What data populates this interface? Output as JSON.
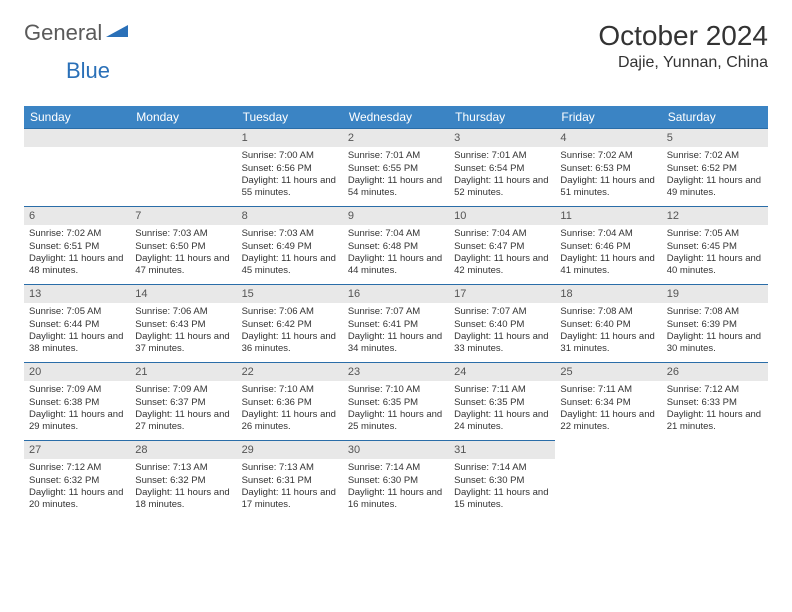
{
  "logo": {
    "text1": "General",
    "text2": "Blue"
  },
  "title": "October 2024",
  "location": "Dajie, Yunnan, China",
  "colors": {
    "header_bg": "#3b84c4",
    "header_text": "#ffffff",
    "daynum_bg": "#e8e8e8",
    "row_divider": "#2a6da8",
    "logo_gray": "#5a5a5a",
    "logo_blue": "#2a70b8"
  },
  "weekdays": [
    "Sunday",
    "Monday",
    "Tuesday",
    "Wednesday",
    "Thursday",
    "Friday",
    "Saturday"
  ],
  "firstDayOffset": 2,
  "days": [
    {
      "n": "1",
      "sunrise": "Sunrise: 7:00 AM",
      "sunset": "Sunset: 6:56 PM",
      "daylight": "Daylight: 11 hours and 55 minutes."
    },
    {
      "n": "2",
      "sunrise": "Sunrise: 7:01 AM",
      "sunset": "Sunset: 6:55 PM",
      "daylight": "Daylight: 11 hours and 54 minutes."
    },
    {
      "n": "3",
      "sunrise": "Sunrise: 7:01 AM",
      "sunset": "Sunset: 6:54 PM",
      "daylight": "Daylight: 11 hours and 52 minutes."
    },
    {
      "n": "4",
      "sunrise": "Sunrise: 7:02 AM",
      "sunset": "Sunset: 6:53 PM",
      "daylight": "Daylight: 11 hours and 51 minutes."
    },
    {
      "n": "5",
      "sunrise": "Sunrise: 7:02 AM",
      "sunset": "Sunset: 6:52 PM",
      "daylight": "Daylight: 11 hours and 49 minutes."
    },
    {
      "n": "6",
      "sunrise": "Sunrise: 7:02 AM",
      "sunset": "Sunset: 6:51 PM",
      "daylight": "Daylight: 11 hours and 48 minutes."
    },
    {
      "n": "7",
      "sunrise": "Sunrise: 7:03 AM",
      "sunset": "Sunset: 6:50 PM",
      "daylight": "Daylight: 11 hours and 47 minutes."
    },
    {
      "n": "8",
      "sunrise": "Sunrise: 7:03 AM",
      "sunset": "Sunset: 6:49 PM",
      "daylight": "Daylight: 11 hours and 45 minutes."
    },
    {
      "n": "9",
      "sunrise": "Sunrise: 7:04 AM",
      "sunset": "Sunset: 6:48 PM",
      "daylight": "Daylight: 11 hours and 44 minutes."
    },
    {
      "n": "10",
      "sunrise": "Sunrise: 7:04 AM",
      "sunset": "Sunset: 6:47 PM",
      "daylight": "Daylight: 11 hours and 42 minutes."
    },
    {
      "n": "11",
      "sunrise": "Sunrise: 7:04 AM",
      "sunset": "Sunset: 6:46 PM",
      "daylight": "Daylight: 11 hours and 41 minutes."
    },
    {
      "n": "12",
      "sunrise": "Sunrise: 7:05 AM",
      "sunset": "Sunset: 6:45 PM",
      "daylight": "Daylight: 11 hours and 40 minutes."
    },
    {
      "n": "13",
      "sunrise": "Sunrise: 7:05 AM",
      "sunset": "Sunset: 6:44 PM",
      "daylight": "Daylight: 11 hours and 38 minutes."
    },
    {
      "n": "14",
      "sunrise": "Sunrise: 7:06 AM",
      "sunset": "Sunset: 6:43 PM",
      "daylight": "Daylight: 11 hours and 37 minutes."
    },
    {
      "n": "15",
      "sunrise": "Sunrise: 7:06 AM",
      "sunset": "Sunset: 6:42 PM",
      "daylight": "Daylight: 11 hours and 36 minutes."
    },
    {
      "n": "16",
      "sunrise": "Sunrise: 7:07 AM",
      "sunset": "Sunset: 6:41 PM",
      "daylight": "Daylight: 11 hours and 34 minutes."
    },
    {
      "n": "17",
      "sunrise": "Sunrise: 7:07 AM",
      "sunset": "Sunset: 6:40 PM",
      "daylight": "Daylight: 11 hours and 33 minutes."
    },
    {
      "n": "18",
      "sunrise": "Sunrise: 7:08 AM",
      "sunset": "Sunset: 6:40 PM",
      "daylight": "Daylight: 11 hours and 31 minutes."
    },
    {
      "n": "19",
      "sunrise": "Sunrise: 7:08 AM",
      "sunset": "Sunset: 6:39 PM",
      "daylight": "Daylight: 11 hours and 30 minutes."
    },
    {
      "n": "20",
      "sunrise": "Sunrise: 7:09 AM",
      "sunset": "Sunset: 6:38 PM",
      "daylight": "Daylight: 11 hours and 29 minutes."
    },
    {
      "n": "21",
      "sunrise": "Sunrise: 7:09 AM",
      "sunset": "Sunset: 6:37 PM",
      "daylight": "Daylight: 11 hours and 27 minutes."
    },
    {
      "n": "22",
      "sunrise": "Sunrise: 7:10 AM",
      "sunset": "Sunset: 6:36 PM",
      "daylight": "Daylight: 11 hours and 26 minutes."
    },
    {
      "n": "23",
      "sunrise": "Sunrise: 7:10 AM",
      "sunset": "Sunset: 6:35 PM",
      "daylight": "Daylight: 11 hours and 25 minutes."
    },
    {
      "n": "24",
      "sunrise": "Sunrise: 7:11 AM",
      "sunset": "Sunset: 6:35 PM",
      "daylight": "Daylight: 11 hours and 24 minutes."
    },
    {
      "n": "25",
      "sunrise": "Sunrise: 7:11 AM",
      "sunset": "Sunset: 6:34 PM",
      "daylight": "Daylight: 11 hours and 22 minutes."
    },
    {
      "n": "26",
      "sunrise": "Sunrise: 7:12 AM",
      "sunset": "Sunset: 6:33 PM",
      "daylight": "Daylight: 11 hours and 21 minutes."
    },
    {
      "n": "27",
      "sunrise": "Sunrise: 7:12 AM",
      "sunset": "Sunset: 6:32 PM",
      "daylight": "Daylight: 11 hours and 20 minutes."
    },
    {
      "n": "28",
      "sunrise": "Sunrise: 7:13 AM",
      "sunset": "Sunset: 6:32 PM",
      "daylight": "Daylight: 11 hours and 18 minutes."
    },
    {
      "n": "29",
      "sunrise": "Sunrise: 7:13 AM",
      "sunset": "Sunset: 6:31 PM",
      "daylight": "Daylight: 11 hours and 17 minutes."
    },
    {
      "n": "30",
      "sunrise": "Sunrise: 7:14 AM",
      "sunset": "Sunset: 6:30 PM",
      "daylight": "Daylight: 11 hours and 16 minutes."
    },
    {
      "n": "31",
      "sunrise": "Sunrise: 7:14 AM",
      "sunset": "Sunset: 6:30 PM",
      "daylight": "Daylight: 11 hours and 15 minutes."
    }
  ]
}
